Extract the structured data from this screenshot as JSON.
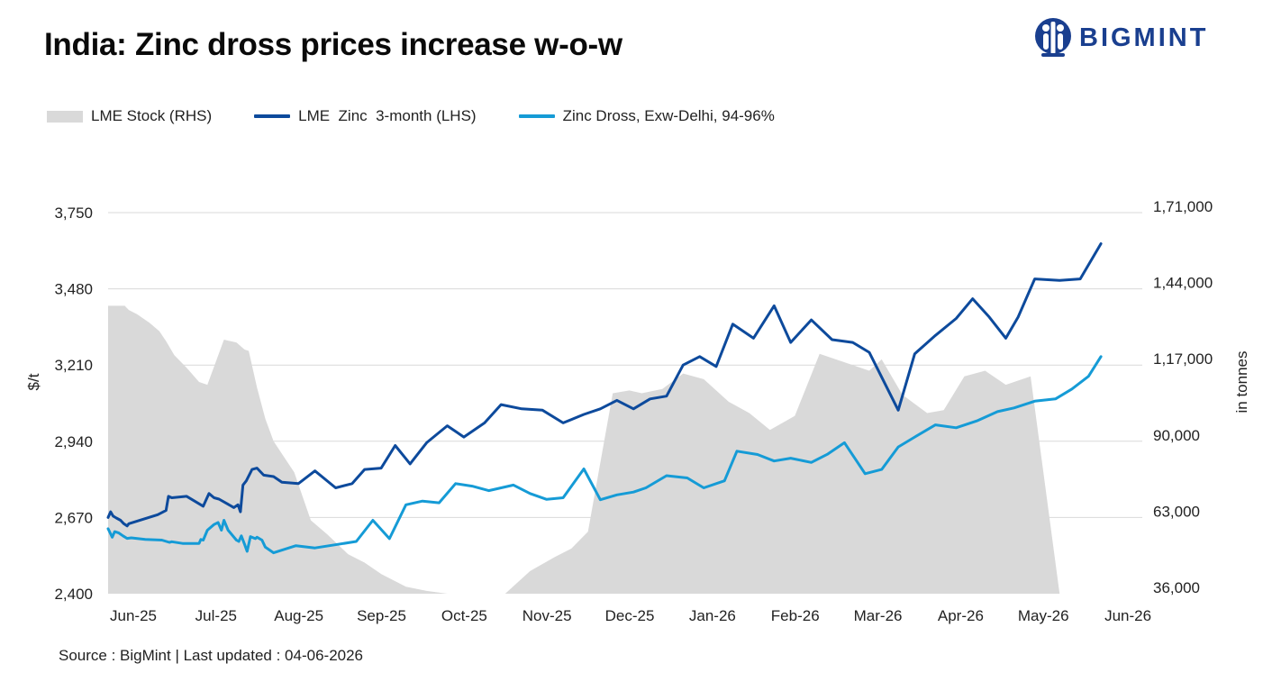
{
  "header": {
    "title": "India: Zinc dross prices increase w-o-w",
    "logo_text": "BIGMINT"
  },
  "footer": {
    "source": "Source : BigMint | Last updated : 04-06-2026"
  },
  "colors": {
    "stock_area": "#d9d9d9",
    "lme_line": "#0d4a9c",
    "dross_line": "#159bd6",
    "gridline": "#d9d9d9",
    "logo": "#1a3f8f"
  },
  "chart_data": {
    "type": "line",
    "title": "India: Zinc dross prices increase w-o-w",
    "ylabel": "$/t",
    "y2label": "in tonnes",
    "ylim": [
      2400,
      3750
    ],
    "y2lim": [
      36000,
      171000
    ],
    "yticks": [
      "2,400",
      "2,670",
      "2,940",
      "3,210",
      "3,480",
      "3,750"
    ],
    "y2ticks": [
      "36,000",
      "63,000",
      "90,000",
      "1,17,000",
      "1,44,000",
      "1,71,000"
    ],
    "xlim": [
      0,
      12.5
    ],
    "xticks": [
      "Jun-25",
      "Jul-25",
      "Aug-25",
      "Sep-25",
      "Oct-25",
      "Nov-25",
      "Dec-25",
      "Jan-26",
      "Feb-26",
      "Mar-26",
      "Apr-26",
      "May-26",
      "Jun-26"
    ],
    "legend_position": "top-left",
    "grid": true,
    "series": [
      {
        "name": "LME Stock (RHS)",
        "kind": "area",
        "axis": "right",
        "x": [
          0,
          0.2,
          0.25,
          0.35,
          0.5,
          0.62,
          0.7,
          0.8,
          0.95,
          1.1,
          1.2,
          1.3,
          1.4,
          1.55,
          1.65,
          1.7,
          1.8,
          1.9,
          2.0,
          2.25,
          2.45,
          2.65,
          2.9,
          3.1,
          3.3,
          3.6,
          3.85,
          4.1,
          4.3,
          4.5,
          4.8,
          5.1,
          5.4,
          5.6,
          5.8,
          6.1,
          6.3,
          6.45,
          6.7,
          6.95,
          7.2,
          7.5,
          7.75,
          8.0,
          8.3,
          8.6,
          9.0,
          9.2,
          9.35,
          9.6,
          9.9,
          10.1,
          10.35,
          10.6,
          10.85,
          11.15,
          11.5,
          11.8,
          12.0,
          12.2,
          12.5
        ],
        "y": [
          138000,
          138000,
          136500,
          135000,
          132000,
          129000,
          125500,
          120500,
          116000,
          111000,
          110000,
          118000,
          126000,
          125000,
          122500,
          122000,
          109000,
          98000,
          90000,
          79000,
          62000,
          57000,
          50000,
          47000,
          43000,
          38500,
          37000,
          36000,
          36000,
          36000,
          36000,
          44000,
          49000,
          52000,
          58000,
          107000,
          108000,
          107000,
          108500,
          114000,
          112000,
          104000,
          100000,
          94000,
          99000,
          121000,
          117000,
          115000,
          119000,
          106500,
          100000,
          101000,
          113000,
          115000,
          110000,
          113000,
          36000,
          36000,
          36000,
          36000,
          36000
        ]
      },
      {
        "name": "LME  Zinc  3-month (LHS)",
        "kind": "line",
        "axis": "left",
        "x": [
          0,
          0.03,
          0.06,
          0.1,
          0.15,
          0.19,
          0.23,
          0.25,
          0.6,
          0.7,
          0.73,
          0.77,
          0.95,
          1.15,
          1.22,
          1.28,
          1.34,
          1.52,
          1.57,
          1.6,
          1.63,
          1.67,
          1.74,
          1.8,
          1.88,
          2.0,
          2.1,
          2.3,
          2.5,
          2.75,
          2.95,
          3.1,
          3.3,
          3.47,
          3.65,
          3.85,
          4.1,
          4.3,
          4.55,
          4.75,
          5.0,
          5.25,
          5.5,
          5.75,
          5.95,
          6.15,
          6.35,
          6.55,
          6.75,
          6.95,
          7.15,
          7.35,
          7.55,
          7.8,
          8.05,
          8.25,
          8.5,
          8.75,
          9.0,
          9.2,
          9.55,
          9.75,
          10.0,
          10.25,
          10.45,
          10.65,
          10.85,
          11.0,
          11.2,
          11.5,
          11.75,
          12.0
        ],
        "y": [
          2670,
          2690,
          2675,
          2668,
          2660,
          2648,
          2640,
          2648,
          2680,
          2695,
          2745,
          2740,
          2745,
          2710,
          2755,
          2740,
          2735,
          2705,
          2715,
          2690,
          2785,
          2800,
          2840,
          2845,
          2820,
          2815,
          2795,
          2790,
          2835,
          2775,
          2790,
          2840,
          2845,
          2925,
          2860,
          2935,
          2995,
          2955,
          3005,
          3070,
          3055,
          3050,
          3005,
          3035,
          3055,
          3085,
          3055,
          3090,
          3100,
          3210,
          3240,
          3205,
          3355,
          3305,
          3420,
          3290,
          3370,
          3300,
          3290,
          3255,
          3050,
          3250,
          3315,
          3375,
          3445,
          3380,
          3305,
          3380,
          3515,
          3510,
          3515,
          3640
        ]
      },
      {
        "name": "Zinc Dross, Exw-Delhi, 94-96%",
        "kind": "line",
        "axis": "left",
        "x": [
          0,
          0.05,
          0.08,
          0.13,
          0.18,
          0.23,
          0.28,
          0.45,
          0.65,
          0.74,
          0.77,
          0.9,
          1.1,
          1.12,
          1.15,
          1.2,
          1.28,
          1.33,
          1.37,
          1.4,
          1.45,
          1.55,
          1.58,
          1.61,
          1.65,
          1.68,
          1.72,
          1.78,
          1.8,
          1.86,
          1.9,
          2.0,
          2.27,
          2.5,
          2.78,
          3.0,
          3.2,
          3.4,
          3.6,
          3.8,
          4.0,
          4.2,
          4.4,
          4.6,
          4.9,
          5.1,
          5.3,
          5.5,
          5.75,
          5.95,
          6.15,
          6.35,
          6.5,
          6.75,
          7.0,
          7.2,
          7.45,
          7.6,
          7.85,
          8.05,
          8.25,
          8.5,
          8.7,
          8.9,
          9.15,
          9.35,
          9.55,
          9.75,
          10.0,
          10.25,
          10.5,
          10.75,
          10.95,
          11.2,
          11.45,
          11.65,
          11.85,
          12.0
        ],
        "y": [
          2630,
          2600,
          2620,
          2615,
          2605,
          2596,
          2598,
          2592,
          2590,
          2582,
          2584,
          2578,
          2578,
          2592,
          2590,
          2625,
          2645,
          2652,
          2625,
          2660,
          2625,
          2590,
          2585,
          2605,
          2575,
          2550,
          2602,
          2595,
          2600,
          2590,
          2565,
          2545,
          2570,
          2562,
          2575,
          2585,
          2660,
          2595,
          2715,
          2728,
          2722,
          2790,
          2781,
          2765,
          2785,
          2755,
          2734,
          2740,
          2842,
          2733,
          2750,
          2760,
          2775,
          2818,
          2810,
          2775,
          2800,
          2905,
          2893,
          2870,
          2880,
          2865,
          2895,
          2935,
          2825,
          2840,
          2920,
          2955,
          2998,
          2988,
          3012,
          3045,
          3058,
          3082,
          3090,
          3125,
          3170,
          3240
        ]
      }
    ]
  }
}
